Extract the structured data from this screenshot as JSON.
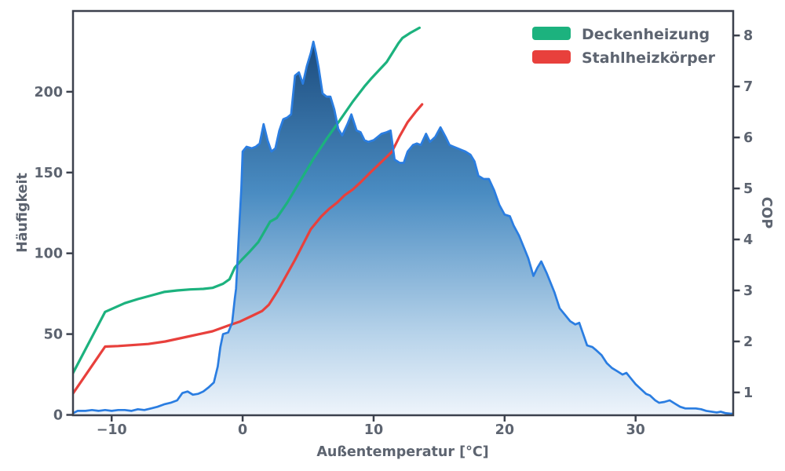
{
  "figure_title": "",
  "axes": {
    "x": {
      "label": "Außentemperatur [°C]",
      "range": [
        -12.95,
        37.45
      ],
      "ticks": [
        -10,
        0,
        10,
        20,
        30
      ],
      "tick_labels": [
        "−10",
        "0",
        "10",
        "20",
        "30"
      ]
    },
    "y_left": {
      "label": "Häufigkeit",
      "range": [
        0,
        250
      ],
      "ticks": [
        0,
        50,
        100,
        150,
        200
      ],
      "tick_labels": [
        "0",
        "50",
        "100",
        "150",
        "200"
      ]
    },
    "y_right": {
      "label": "COP",
      "range": [
        0.56,
        8.48
      ],
      "ticks": [
        1,
        2,
        3,
        4,
        5,
        6,
        7,
        8
      ],
      "tick_labels": [
        "1",
        "2",
        "3",
        "4",
        "5",
        "6",
        "7",
        "8"
      ]
    }
  },
  "legend": {
    "items": [
      {
        "label": "Deckenheizung",
        "color": "#1cb27e"
      },
      {
        "label": "Stahlheizkörper",
        "color": "#e8403c"
      }
    ]
  },
  "colors": {
    "hist_edge": "#2a7de1",
    "gradient_stops": [
      "#123e6f",
      "#4a8cc2",
      "#b7d3ea",
      "#eef4fb"
    ],
    "gradient_offsets": [
      0,
      0.45,
      0.8,
      1
    ],
    "spine": "#3c414d",
    "text": "#5d6470",
    "green": "#1cb27e",
    "red": "#e8403c"
  },
  "chart_data": {
    "type": "combo-histogram-line",
    "title": "",
    "xlabel": "Außentemperatur [°C]",
    "ylabel_left": "Häufigkeit",
    "ylabel_right": "COP",
    "xlim": [
      -12.95,
      37.45
    ],
    "ylim_left": [
      0,
      250
    ],
    "ylim_right": [
      0.56,
      8.48
    ],
    "grid": false,
    "legend_position": "upper right",
    "histogram": {
      "name": "Häufigkeit",
      "axis": "left",
      "points": [
        [
          -12.95,
          1
        ],
        [
          -12.6,
          2.5
        ],
        [
          -12.0,
          2.5
        ],
        [
          -11.5,
          3
        ],
        [
          -11.0,
          2.5
        ],
        [
          -10.5,
          3
        ],
        [
          -10.0,
          2.5
        ],
        [
          -9.5,
          3
        ],
        [
          -9.0,
          3
        ],
        [
          -8.5,
          2.5
        ],
        [
          -8.0,
          3.5
        ],
        [
          -7.5,
          3
        ],
        [
          -7.0,
          4
        ],
        [
          -6.5,
          5
        ],
        [
          -6.0,
          6.5
        ],
        [
          -5.5,
          7.5
        ],
        [
          -5.0,
          9
        ],
        [
          -4.6,
          13.5
        ],
        [
          -4.2,
          14.5
        ],
        [
          -3.8,
          12.5
        ],
        [
          -3.4,
          13
        ],
        [
          -3.0,
          14.5
        ],
        [
          -2.6,
          17
        ],
        [
          -2.2,
          20
        ],
        [
          -1.9,
          30
        ],
        [
          -1.7,
          42
        ],
        [
          -1.5,
          50
        ],
        [
          -1.1,
          51
        ],
        [
          -0.8,
          57
        ],
        [
          -0.6,
          72
        ],
        [
          -0.5,
          78
        ],
        [
          -0.3,
          110
        ],
        [
          -0.1,
          140
        ],
        [
          0.0,
          163
        ],
        [
          0.3,
          166
        ],
        [
          0.7,
          165
        ],
        [
          1.0,
          166
        ],
        [
          1.3,
          168
        ],
        [
          1.6,
          180
        ],
        [
          1.9,
          170
        ],
        [
          2.2,
          163
        ],
        [
          2.5,
          165
        ],
        [
          2.8,
          176
        ],
        [
          3.1,
          183
        ],
        [
          3.4,
          184
        ],
        [
          3.7,
          186
        ],
        [
          4.0,
          210
        ],
        [
          4.3,
          212
        ],
        [
          4.6,
          205
        ],
        [
          4.9,
          216
        ],
        [
          5.2,
          224
        ],
        [
          5.4,
          231
        ],
        [
          5.6,
          224
        ],
        [
          5.8,
          215
        ],
        [
          6.1,
          199
        ],
        [
          6.4,
          197
        ],
        [
          6.7,
          197
        ],
        [
          7.0,
          189
        ],
        [
          7.3,
          177
        ],
        [
          7.6,
          173
        ],
        [
          8.0,
          180
        ],
        [
          8.3,
          186
        ],
        [
          8.7,
          176
        ],
        [
          9.0,
          175
        ],
        [
          9.3,
          170
        ],
        [
          9.6,
          169
        ],
        [
          10.0,
          170
        ],
        [
          10.3,
          172
        ],
        [
          10.6,
          174
        ],
        [
          11.0,
          175
        ],
        [
          11.3,
          176
        ],
        [
          11.6,
          158
        ],
        [
          12.0,
          156
        ],
        [
          12.3,
          156
        ],
        [
          12.6,
          163
        ],
        [
          13.0,
          167
        ],
        [
          13.3,
          168
        ],
        [
          13.6,
          167
        ],
        [
          14.0,
          174
        ],
        [
          14.3,
          169
        ],
        [
          14.7,
          172
        ],
        [
          15.1,
          178
        ],
        [
          15.5,
          172
        ],
        [
          15.8,
          167
        ],
        [
          16.1,
          166
        ],
        [
          16.4,
          165
        ],
        [
          16.7,
          164
        ],
        [
          17.0,
          163
        ],
        [
          17.4,
          161
        ],
        [
          17.7,
          157
        ],
        [
          18.0,
          148
        ],
        [
          18.4,
          146
        ],
        [
          18.8,
          146
        ],
        [
          19.2,
          139
        ],
        [
          19.6,
          130
        ],
        [
          20.0,
          124
        ],
        [
          20.4,
          123
        ],
        [
          20.7,
          117
        ],
        [
          21.1,
          111
        ],
        [
          21.5,
          103
        ],
        [
          21.8,
          97
        ],
        [
          22.2,
          86
        ],
        [
          22.5,
          91
        ],
        [
          22.8,
          95
        ],
        [
          23.2,
          88
        ],
        [
          23.5,
          82
        ],
        [
          23.8,
          76
        ],
        [
          24.2,
          66
        ],
        [
          24.6,
          62
        ],
        [
          25.0,
          58
        ],
        [
          25.4,
          56
        ],
        [
          25.7,
          57
        ],
        [
          26.0,
          50
        ],
        [
          26.3,
          43
        ],
        [
          26.7,
          42
        ],
        [
          27.0,
          40
        ],
        [
          27.4,
          37
        ],
        [
          27.8,
          32
        ],
        [
          28.2,
          29
        ],
        [
          28.6,
          27
        ],
        [
          29.0,
          25
        ],
        [
          29.3,
          26
        ],
        [
          29.6,
          23
        ],
        [
          30.0,
          19
        ],
        [
          30.4,
          16
        ],
        [
          30.8,
          13
        ],
        [
          31.1,
          12
        ],
        [
          31.5,
          9
        ],
        [
          31.8,
          7.5
        ],
        [
          32.2,
          8
        ],
        [
          32.6,
          9
        ],
        [
          33.0,
          7
        ],
        [
          33.4,
          5
        ],
        [
          33.8,
          4
        ],
        [
          34.2,
          4
        ],
        [
          34.6,
          4
        ],
        [
          35.0,
          3.5
        ],
        [
          35.4,
          2.5
        ],
        [
          35.8,
          2
        ],
        [
          36.2,
          1.5
        ],
        [
          36.5,
          2
        ],
        [
          36.9,
          1
        ],
        [
          37.2,
          0.8
        ],
        [
          37.4,
          0.7
        ]
      ]
    },
    "series": [
      {
        "name": "Deckenheizung",
        "axis": "right",
        "color": "#1cb27e",
        "points": [
          [
            -12.95,
            1.38
          ],
          [
            -10.5,
            2.58
          ],
          [
            -9.0,
            2.75
          ],
          [
            -8.0,
            2.83
          ],
          [
            -7.0,
            2.9
          ],
          [
            -6.0,
            2.97
          ],
          [
            -5.0,
            3.0
          ],
          [
            -4.0,
            3.02
          ],
          [
            -3.0,
            3.03
          ],
          [
            -2.3,
            3.05
          ],
          [
            -1.5,
            3.13
          ],
          [
            -1.0,
            3.22
          ],
          [
            -0.6,
            3.45
          ],
          [
            0.0,
            3.62
          ],
          [
            0.5,
            3.75
          ],
          [
            1.2,
            3.95
          ],
          [
            2.1,
            4.35
          ],
          [
            2.6,
            4.42
          ],
          [
            3.4,
            4.72
          ],
          [
            4.4,
            5.15
          ],
          [
            5.4,
            5.58
          ],
          [
            6.4,
            5.97
          ],
          [
            7.4,
            6.33
          ],
          [
            8.4,
            6.7
          ],
          [
            9.3,
            7.0
          ],
          [
            9.8,
            7.15
          ],
          [
            11.0,
            7.48
          ],
          [
            11.9,
            7.85
          ],
          [
            12.2,
            7.95
          ],
          [
            12.8,
            8.05
          ],
          [
            13.5,
            8.15
          ]
        ]
      },
      {
        "name": "Stahlheizkörper",
        "axis": "right",
        "color": "#e8403c",
        "points": [
          [
            -12.95,
            0.98
          ],
          [
            -10.5,
            1.9
          ],
          [
            -9.5,
            1.91
          ],
          [
            -7.2,
            1.95
          ],
          [
            -5.9,
            2.0
          ],
          [
            -4.1,
            2.1
          ],
          [
            -2.3,
            2.2
          ],
          [
            -1.1,
            2.31
          ],
          [
            -0.2,
            2.39
          ],
          [
            0.7,
            2.5
          ],
          [
            1.5,
            2.6
          ],
          [
            2.0,
            2.72
          ],
          [
            2.7,
            3.0
          ],
          [
            4.0,
            3.6
          ],
          [
            5.2,
            4.2
          ],
          [
            6.0,
            4.45
          ],
          [
            6.6,
            4.6
          ],
          [
            7.2,
            4.72
          ],
          [
            7.8,
            4.87
          ],
          [
            8.4,
            4.98
          ],
          [
            9.0,
            5.12
          ],
          [
            9.9,
            5.35
          ],
          [
            10.8,
            5.57
          ],
          [
            11.4,
            5.72
          ],
          [
            12.0,
            6.03
          ],
          [
            12.6,
            6.3
          ],
          [
            13.2,
            6.5
          ],
          [
            13.7,
            6.65
          ]
        ]
      }
    ]
  }
}
